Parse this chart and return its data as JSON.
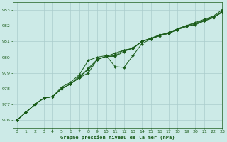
{
  "title": "Graphe pression niveau de la mer (hPa)",
  "xlim": [
    -0.5,
    23
  ],
  "ylim": [
    975.5,
    983.5
  ],
  "yticks": [
    976,
    977,
    978,
    979,
    980,
    981,
    982,
    983
  ],
  "xticks": [
    0,
    1,
    2,
    3,
    4,
    5,
    6,
    7,
    8,
    9,
    10,
    11,
    12,
    13,
    14,
    15,
    16,
    17,
    18,
    19,
    20,
    21,
    22,
    23
  ],
  "background_color": "#cceae7",
  "grid_color": "#aacccc",
  "line_color": "#1a5c1a",
  "series1": [
    976.0,
    976.5,
    977.0,
    977.4,
    977.5,
    978.0,
    978.3,
    978.7,
    979.3,
    979.85,
    980.05,
    980.25,
    980.45,
    980.55,
    981.0,
    981.15,
    981.35,
    981.5,
    981.75,
    981.95,
    982.1,
    982.3,
    982.5,
    982.85
  ],
  "series2": [
    976.0,
    976.5,
    977.0,
    977.4,
    977.5,
    978.1,
    978.4,
    978.9,
    979.8,
    980.0,
    980.1,
    979.4,
    979.35,
    980.1,
    980.85,
    981.15,
    981.4,
    981.55,
    981.8,
    982.0,
    982.2,
    982.4,
    982.6,
    983.0
  ],
  "series3": [
    976.0,
    976.5,
    977.0,
    977.4,
    977.5,
    978.0,
    978.3,
    978.8,
    979.2,
    979.85,
    980.05,
    980.05,
    980.35,
    980.6,
    981.0,
    981.2,
    981.4,
    981.55,
    981.8,
    982.0,
    982.15,
    982.35,
    982.55,
    982.9
  ],
  "series4": [
    976.0,
    976.5,
    977.0,
    977.4,
    977.5,
    978.0,
    978.3,
    978.7,
    979.0,
    979.85,
    980.05,
    980.1,
    980.45,
    980.55,
    981.0,
    981.2,
    981.4,
    981.5,
    981.75,
    981.95,
    982.05,
    982.3,
    982.5,
    982.85
  ]
}
